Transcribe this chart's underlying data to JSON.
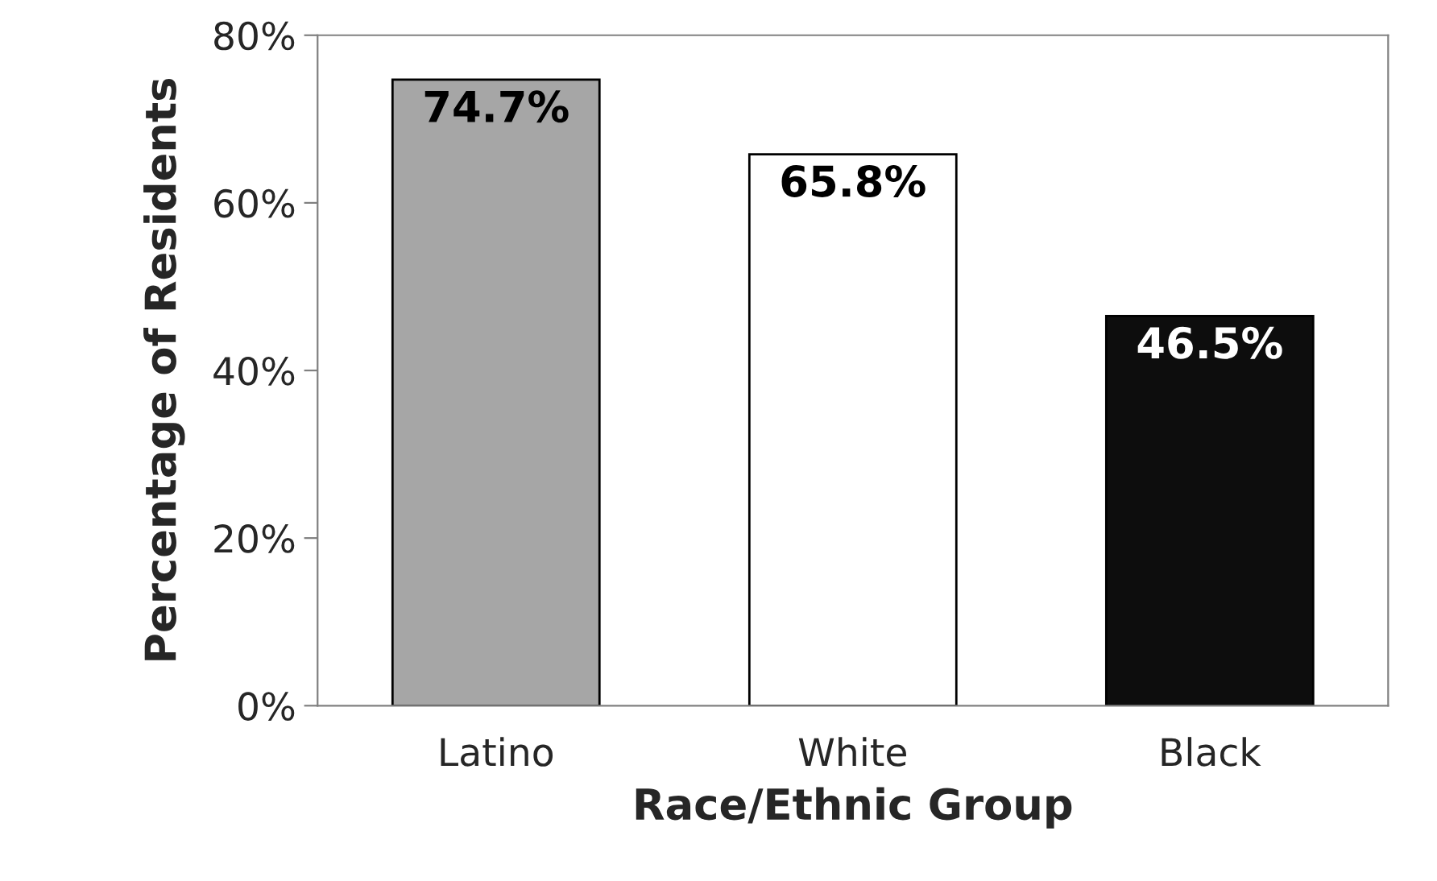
{
  "chart_data": {
    "type": "bar",
    "xlabel": "Race/Ethnic Group",
    "ylabel": "Percentage of Residents",
    "categories": [
      "Latino",
      "White",
      "Black"
    ],
    "values": [
      74.7,
      65.8,
      46.5
    ],
    "colors": [
      "#a6a6a6",
      "#ffffff",
      "#0d0d0d"
    ],
    "value_labels": [
      "74.7%",
      "65.8%",
      "46.5%"
    ],
    "ylim": [
      0,
      80
    ],
    "yticks": [
      {
        "value": 0,
        "label": "0%"
      },
      {
        "value": 20,
        "label": "20%"
      },
      {
        "value": 40,
        "label": "40%"
      },
      {
        "value": 60,
        "label": "60%"
      },
      {
        "value": 80,
        "label": "80%"
      }
    ],
    "grid": false,
    "legend": false
  }
}
